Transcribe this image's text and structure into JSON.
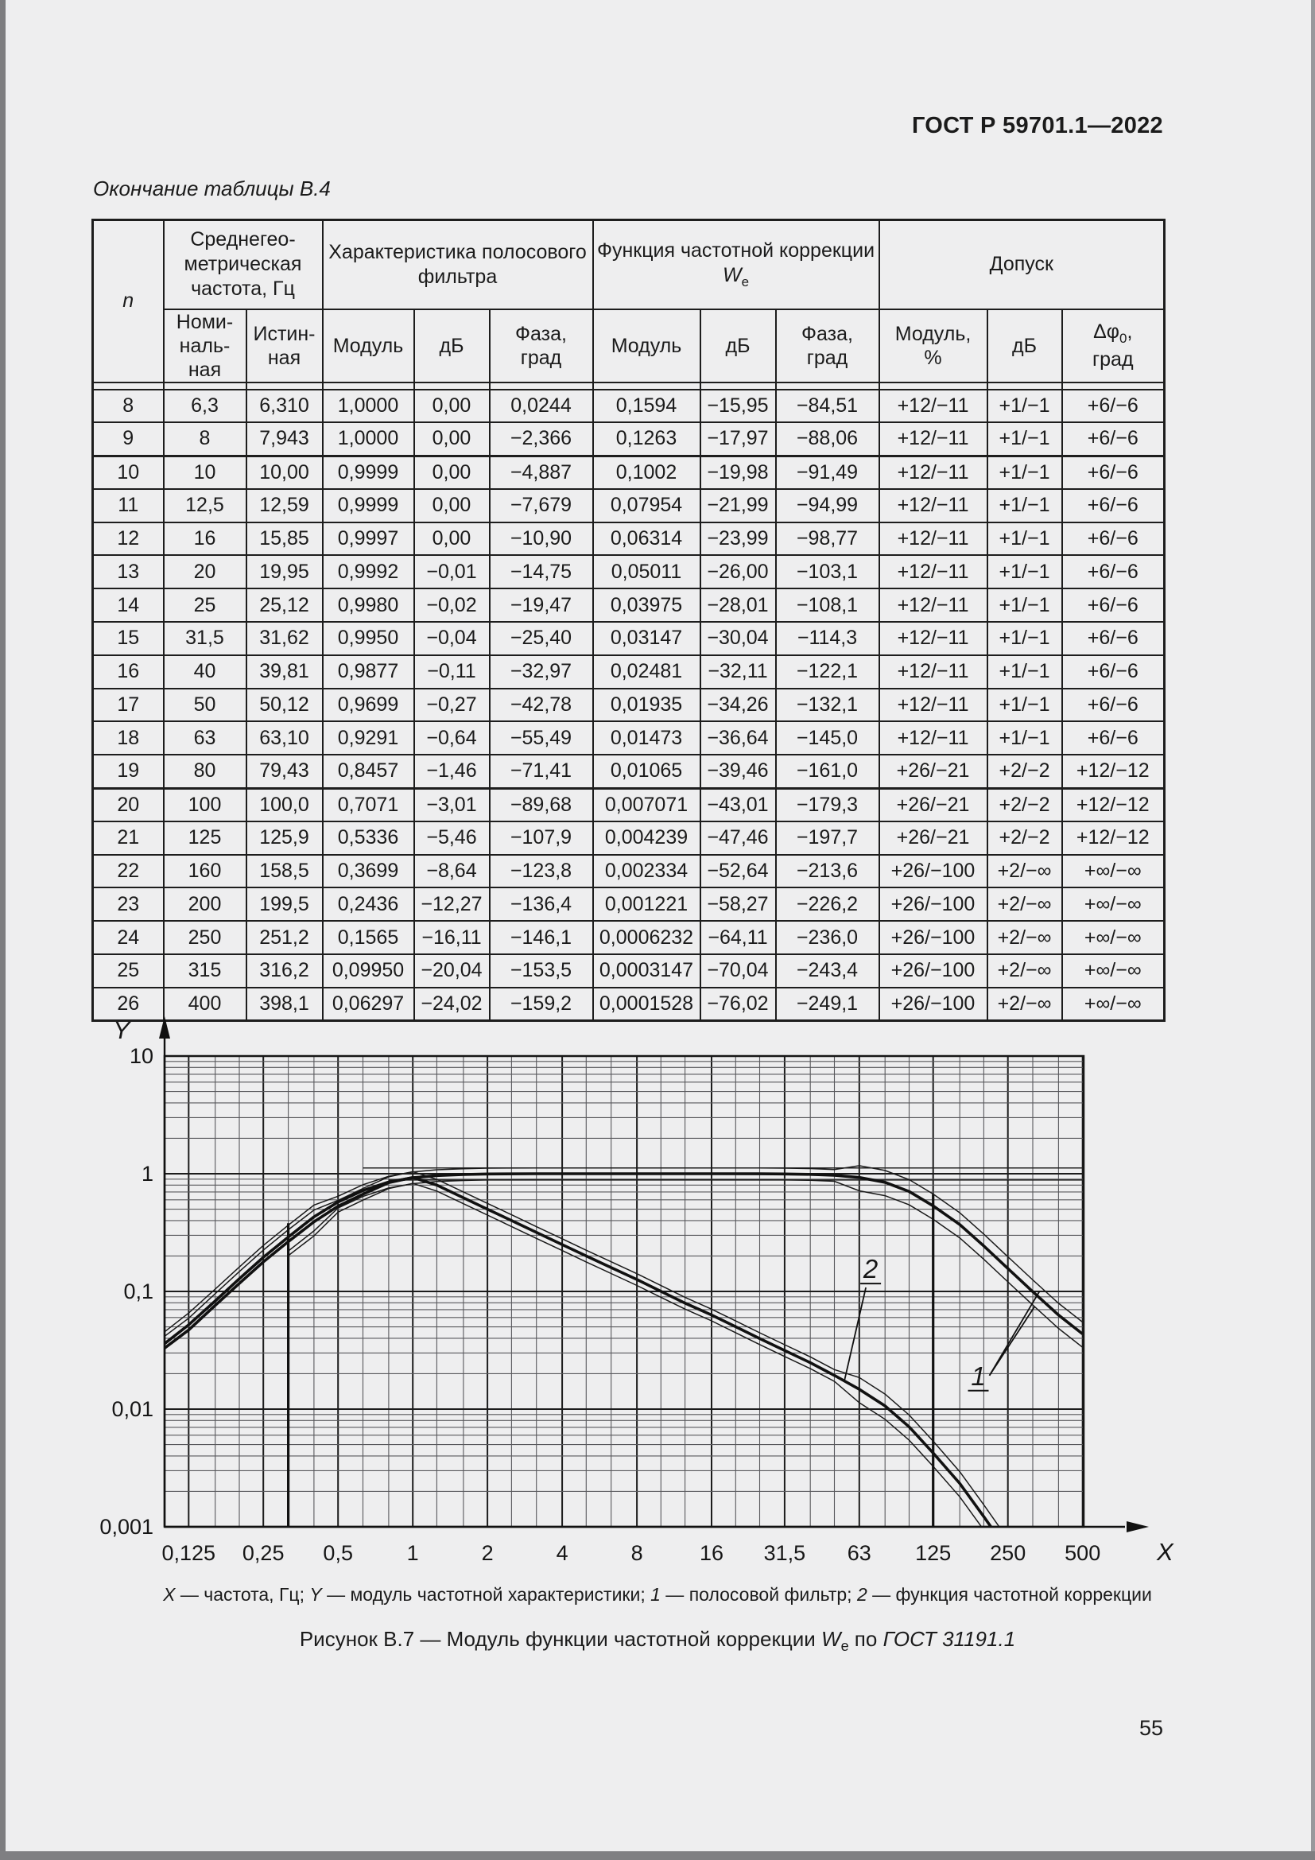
{
  "page": {
    "header": "ГОСТ Р 59701.1—2022",
    "page_number": "55"
  },
  "table": {
    "caption": "Окончание таблицы В.4",
    "col_n": "n",
    "groups": {
      "freq": "Среднегео-\nметрическая\nчастота, Гц",
      "filter": "Характеристика полосового\nфильтра",
      "corr_prefix": "Функция частотной коррекции",
      "corr_sym": "W",
      "corr_sub": "e",
      "tol": "Допуск"
    },
    "sub": {
      "nominal": "Номи-\nналь-\nная",
      "true_val": "Истин-\nная",
      "mod1": "Модуль",
      "db1": "дБ",
      "phase1": "Фаза,\nград",
      "mod2": "Модуль",
      "db2": "дБ",
      "phase2": "Фаза,\nград",
      "mod_tol": "Модуль,\n%",
      "db_tol": "дБ",
      "dphi": "Δφ",
      "dphi_sub": "0",
      "dphi_post": ",",
      "dphi_unit": "град"
    },
    "rows": [
      [
        "8",
        "6,3",
        "6,310",
        "1,0000",
        "0,00",
        "0,0244",
        "0,1594",
        "−15,95",
        "−84,51",
        "+12/−11",
        "+1/−1",
        "+6/−6"
      ],
      [
        "9",
        "8",
        "7,943",
        "1,0000",
        "0,00",
        "−2,366",
        "0,1263",
        "−17,97",
        "−88,06",
        "+12/−11",
        "+1/−1",
        "+6/−6"
      ],
      [
        "10",
        "10",
        "10,00",
        "0,9999",
        "0,00",
        "−4,887",
        "0,1002",
        "−19,98",
        "−91,49",
        "+12/−11",
        "+1/−1",
        "+6/−6"
      ],
      [
        "11",
        "12,5",
        "12,59",
        "0,9999",
        "0,00",
        "−7,679",
        "0,07954",
        "−21,99",
        "−94,99",
        "+12/−11",
        "+1/−1",
        "+6/−6"
      ],
      [
        "12",
        "16",
        "15,85",
        "0,9997",
        "0,00",
        "−10,90",
        "0,06314",
        "−23,99",
        "−98,77",
        "+12/−11",
        "+1/−1",
        "+6/−6"
      ],
      [
        "13",
        "20",
        "19,95",
        "0,9992",
        "−0,01",
        "−14,75",
        "0,05011",
        "−26,00",
        "−103,1",
        "+12/−11",
        "+1/−1",
        "+6/−6"
      ],
      [
        "14",
        "25",
        "25,12",
        "0,9980",
        "−0,02",
        "−19,47",
        "0,03975",
        "−28,01",
        "−108,1",
        "+12/−11",
        "+1/−1",
        "+6/−6"
      ],
      [
        "15",
        "31,5",
        "31,62",
        "0,9950",
        "−0,04",
        "−25,40",
        "0,03147",
        "−30,04",
        "−114,3",
        "+12/−11",
        "+1/−1",
        "+6/−6"
      ],
      [
        "16",
        "40",
        "39,81",
        "0,9877",
        "−0,11",
        "−32,97",
        "0,02481",
        "−32,11",
        "−122,1",
        "+12/−11",
        "+1/−1",
        "+6/−6"
      ],
      [
        "17",
        "50",
        "50,12",
        "0,9699",
        "−0,27",
        "−42,78",
        "0,01935",
        "−34,26",
        "−132,1",
        "+12/−11",
        "+1/−1",
        "+6/−6"
      ],
      [
        "18",
        "63",
        "63,10",
        "0,9291",
        "−0,64",
        "−55,49",
        "0,01473",
        "−36,64",
        "−145,0",
        "+12/−11",
        "+1/−1",
        "+6/−6"
      ],
      [
        "19",
        "80",
        "79,43",
        "0,8457",
        "−1,46",
        "−71,41",
        "0,01065",
        "−39,46",
        "−161,0",
        "+26/−21",
        "+2/−2",
        "+12/−12"
      ],
      [
        "20",
        "100",
        "100,0",
        "0,7071",
        "−3,01",
        "−89,68",
        "0,007071",
        "−43,01",
        "−179,3",
        "+26/−21",
        "+2/−2",
        "+12/−12"
      ],
      [
        "21",
        "125",
        "125,9",
        "0,5336",
        "−5,46",
        "−107,9",
        "0,004239",
        "−47,46",
        "−197,7",
        "+26/−21",
        "+2/−2",
        "+12/−12"
      ],
      [
        "22",
        "160",
        "158,5",
        "0,3699",
        "−8,64",
        "−123,8",
        "0,002334",
        "−52,64",
        "−213,6",
        "+26/−100",
        "+2/−∞",
        "+∞/−∞"
      ],
      [
        "23",
        "200",
        "199,5",
        "0,2436",
        "−12,27",
        "−136,4",
        "0,001221",
        "−58,27",
        "−226,2",
        "+26/−100",
        "+2/−∞",
        "+∞/−∞"
      ],
      [
        "24",
        "250",
        "251,2",
        "0,1565",
        "−16,11",
        "−146,1",
        "0,0006232",
        "−64,11",
        "−236,0",
        "+26/−100",
        "+2/−∞",
        "+∞/−∞"
      ],
      [
        "25",
        "315",
        "316,2",
        "0,09950",
        "−20,04",
        "−153,5",
        "0,0003147",
        "−70,04",
        "−243,4",
        "+26/−100",
        "+2/−∞",
        "+∞/−∞"
      ],
      [
        "26",
        "400",
        "398,1",
        "0,06297",
        "−24,02",
        "−159,2",
        "0,0001528",
        "−76,02",
        "−249,1",
        "+26/−100",
        "+2/−∞",
        "+∞/−∞"
      ]
    ],
    "group_start_rows": [
      "10",
      "20"
    ]
  },
  "chart_data": {
    "type": "line",
    "title": "Модуль функции частотной коррекции We по ГОСТ 31191.1",
    "x_axis": {
      "symbol": "X",
      "label": "частота, Гц",
      "scale": "log",
      "major_ticks": [
        0.125,
        0.25,
        0.5,
        1,
        2,
        4,
        8,
        16,
        31.5,
        63,
        125,
        250,
        500
      ],
      "major_tick_labels": [
        "0,125",
        "0,25",
        "0,5",
        "1",
        "2",
        "4",
        "8",
        "16",
        "31,5",
        "63",
        "125",
        "250",
        "500"
      ],
      "gridlines": [
        0.125,
        0.16,
        0.2,
        0.25,
        0.315,
        0.4,
        0.5,
        0.63,
        0.8,
        1,
        1.25,
        1.6,
        2,
        2.5,
        3.15,
        4,
        5,
        6.3,
        8,
        10,
        12.5,
        16,
        20,
        25,
        31.5,
        40,
        50,
        63,
        80,
        100,
        125,
        160,
        200,
        250,
        315,
        400,
        500
      ]
    },
    "y_axis": {
      "symbol": "Y",
      "label": "модуль частотной характеристики",
      "scale": "log",
      "major_ticks": [
        10,
        1,
        0.1,
        0.01,
        0.001
      ],
      "major_tick_labels": [
        "10",
        "1",
        "0,1",
        "0,01",
        "0,001"
      ]
    },
    "series": [
      {
        "id": "1",
        "name": "полосовой фильтр",
        "points": [
          [
            0.1,
            0.036
          ],
          [
            0.125,
            0.052
          ],
          [
            0.16,
            0.083
          ],
          [
            0.2,
            0.128
          ],
          [
            0.25,
            0.195
          ],
          [
            0.315,
            0.29
          ],
          [
            0.4,
            0.43
          ],
          [
            0.5,
            0.575
          ],
          [
            0.63,
            0.72
          ],
          [
            0.8,
            0.85
          ],
          [
            1,
            0.925
          ],
          [
            1.25,
            0.965
          ],
          [
            1.6,
            0.985
          ],
          [
            2,
            0.995
          ],
          [
            3.15,
            1.0
          ],
          [
            6.3,
            1.0
          ],
          [
            10,
            1.0
          ],
          [
            16,
            0.9997
          ],
          [
            25,
            0.998
          ],
          [
            31.5,
            0.995
          ],
          [
            40,
            0.9877
          ],
          [
            50,
            0.9699
          ],
          [
            63,
            0.9291
          ],
          [
            80,
            0.8457
          ],
          [
            100,
            0.7071
          ],
          [
            125,
            0.5336
          ],
          [
            160,
            0.3699
          ],
          [
            200,
            0.2436
          ],
          [
            250,
            0.1565
          ],
          [
            315,
            0.0995
          ],
          [
            400,
            0.06297
          ],
          [
            500,
            0.0435
          ]
        ]
      },
      {
        "id": "2",
        "name": "функция частотной коррекции",
        "points": [
          [
            0.1,
            0.033
          ],
          [
            0.125,
            0.047
          ],
          [
            0.16,
            0.076
          ],
          [
            0.2,
            0.117
          ],
          [
            0.25,
            0.178
          ],
          [
            0.315,
            0.265
          ],
          [
            0.4,
            0.39
          ],
          [
            0.5,
            0.53
          ],
          [
            0.63,
            0.67
          ],
          [
            0.8,
            0.84
          ],
          [
            1,
            0.93
          ],
          [
            1.25,
            0.8
          ],
          [
            1.6,
            0.625
          ],
          [
            2,
            0.5
          ],
          [
            2.5,
            0.4
          ],
          [
            3.15,
            0.317
          ],
          [
            4,
            0.25
          ],
          [
            5,
            0.2
          ],
          [
            6.3,
            0.1594
          ],
          [
            8,
            0.1263
          ],
          [
            10,
            0.1002
          ],
          [
            12.5,
            0.07954
          ],
          [
            16,
            0.06314
          ],
          [
            20,
            0.05011
          ],
          [
            25,
            0.03975
          ],
          [
            31.5,
            0.03147
          ],
          [
            40,
            0.02481
          ],
          [
            50,
            0.01935
          ],
          [
            63,
            0.01473
          ],
          [
            80,
            0.01065
          ],
          [
            100,
            0.007071
          ],
          [
            125,
            0.004239
          ],
          [
            160,
            0.002334
          ],
          [
            200,
            0.001221
          ],
          [
            250,
            0.0006232
          ],
          [
            315,
            0.0003147
          ],
          [
            400,
            0.0001528
          ]
        ]
      }
    ],
    "tolerance_band": {
      "upper_factors": [
        [
          0.5,
          1.26
        ],
        [
          63,
          1.12
        ],
        [
          100000,
          1.26
        ]
      ],
      "lower_factors": [
        [
          0.5,
          0.76
        ],
        [
          63,
          0.89
        ],
        [
          100000,
          0.77
        ]
      ],
      "lower_start": 0.315
    },
    "limit_lines": [
      {
        "y": 1.12,
        "x1": 0.63,
        "x2": 500
      },
      {
        "y": 0.885,
        "x1": 0.8,
        "x2": 500
      }
    ],
    "vertical_lines": [
      {
        "x": 0.315,
        "y_top": 0.38
      },
      {
        "x": 125,
        "y_top": 0.67
      }
    ],
    "callouts": [
      {
        "label": "2",
        "at": [
          70,
          0.13
        ],
        "targets": [
          [
            55,
            0.0178
          ]
        ]
      },
      {
        "label": "1",
        "at": [
          190,
          0.016
        ],
        "targets": [
          [
            335,
            0.1
          ],
          [
            320,
            0.074
          ]
        ]
      }
    ]
  },
  "caption": {
    "x_sym": "X",
    "x_txt": " — частота, Гц; ",
    "y_sym": "Y",
    "y_txt": " — модуль частотной характеристики; ",
    "s1": "1",
    "s1_txt": " — полосовой фильтр; ",
    "s2": "2",
    "s2_txt": " — функция частотной коррекции"
  },
  "figure": {
    "prefix": "Рисунок В.7 — Модуль функции частотной коррекции ",
    "sym": "W",
    "sub": "e",
    "mid": " по ",
    "gost": "ГОСТ 31191.1"
  }
}
